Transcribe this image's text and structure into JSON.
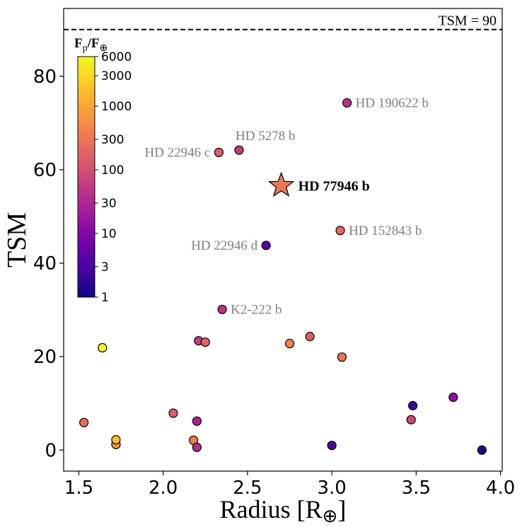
{
  "chart_data": {
    "type": "scatter",
    "title": "",
    "xlabel_main": "Radius [R",
    "xlabel_symbol": "⊕",
    "xlabel_close": "]",
    "ylabel": "TSM",
    "xlim": [
      1.41,
      4.01
    ],
    "ylim": [
      -4.5,
      94.5
    ],
    "xticks": [
      1.5,
      2.0,
      2.5,
      3.0,
      3.5,
      4.0
    ],
    "xtick_labels": [
      "1.5",
      "2.0",
      "2.5",
      "3.0",
      "3.5",
      "4.0"
    ],
    "yticks": [
      0,
      20,
      40,
      60,
      80
    ],
    "ytick_labels": [
      "0",
      "20",
      "40",
      "60",
      "80"
    ],
    "reference_line": {
      "y": 90,
      "label": "TSM = 90",
      "style": "dashed"
    },
    "colorbar": {
      "title_main": "F",
      "title_sub1": "p",
      "title_slash": "/F",
      "title_sub2": "⊕",
      "colormap": "plasma",
      "scale": "log",
      "range": [
        1,
        6000
      ],
      "ticks": [
        1,
        3,
        10,
        30,
        100,
        300,
        1000,
        3000,
        6000
      ],
      "tick_labels": [
        "1",
        "3",
        "10",
        "30",
        "100",
        "300",
        "1000",
        "3000",
        "6000"
      ],
      "stops": [
        "#0d0887",
        "#46039f",
        "#7201a8",
        "#9c179e",
        "#bd3786",
        "#d8576b",
        "#ed7953",
        "#fb9f3a",
        "#fdca26",
        "#f0f921"
      ]
    },
    "points": [
      {
        "x": 1.53,
        "y": 5.9,
        "flux": 250
      },
      {
        "x": 1.64,
        "y": 21.9,
        "flux": 5500
      },
      {
        "x": 1.72,
        "y": 1.2,
        "flux": 700
      },
      {
        "x": 1.72,
        "y": 2.2,
        "flux": 1800
      },
      {
        "x": 2.06,
        "y": 7.9,
        "flux": 150
      },
      {
        "x": 2.18,
        "y": 2.1,
        "flux": 350
      },
      {
        "x": 2.2,
        "y": 6.2,
        "flux": 25
      },
      {
        "x": 2.2,
        "y": 0.6,
        "flux": 35
      },
      {
        "x": 2.21,
        "y": 23.4,
        "flux": 60
      },
      {
        "x": 2.25,
        "y": 23.1,
        "flux": 180
      },
      {
        "x": 2.33,
        "y": 63.7,
        "flux": 150,
        "label": "HD 22946 c",
        "label_side": "left"
      },
      {
        "x": 2.35,
        "y": 30.1,
        "flux": 45,
        "label": "K2-222 b",
        "label_side": "right"
      },
      {
        "x": 2.45,
        "y": 64.2,
        "flux": 60,
        "label": "HD 5278 b",
        "label_side": "above"
      },
      {
        "x": 2.61,
        "y": 43.8,
        "flux": 4,
        "label": "HD 22946 d",
        "label_side": "left"
      },
      {
        "x": 2.75,
        "y": 22.8,
        "flux": 450
      },
      {
        "x": 2.87,
        "y": 24.3,
        "flux": 160
      },
      {
        "x": 3.0,
        "y": 1.0,
        "flux": 3
      },
      {
        "x": 3.05,
        "y": 47.0,
        "flux": 200,
        "label": "HD 152843 b",
        "label_side": "right"
      },
      {
        "x": 3.06,
        "y": 19.9,
        "flux": 300
      },
      {
        "x": 3.09,
        "y": 74.3,
        "flux": 40,
        "label": "HD 190622 b",
        "label_side": "right"
      },
      {
        "x": 3.47,
        "y": 6.5,
        "flux": 80
      },
      {
        "x": 3.48,
        "y": 9.5,
        "flux": 2.2
      },
      {
        "x": 3.72,
        "y": 11.3,
        "flux": 14
      },
      {
        "x": 3.89,
        "y": 0.0,
        "flux": 1.3
      }
    ],
    "highlight": {
      "x": 2.7,
      "y": 56.6,
      "flux": 300,
      "label": "HD 77946 b",
      "marker": "star"
    }
  }
}
